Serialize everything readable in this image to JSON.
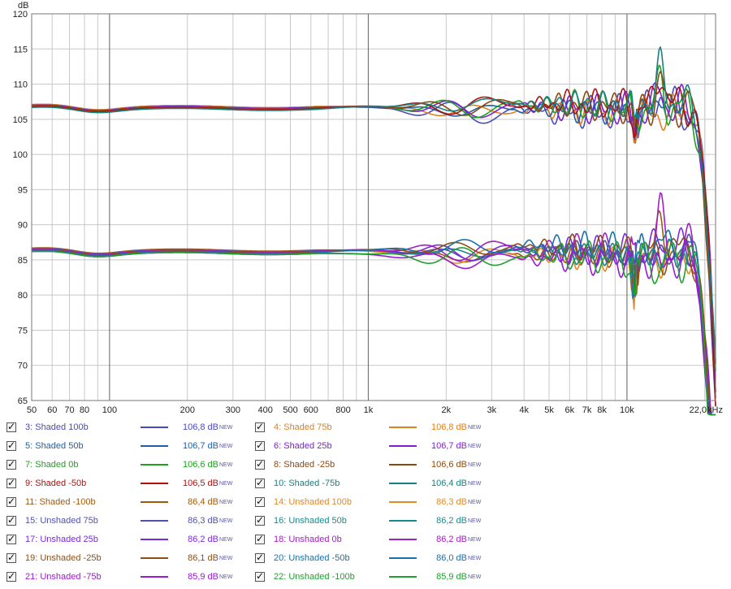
{
  "chart_data": {
    "type": "line",
    "ylabel": "dB",
    "xunit": "kHz",
    "ylim": [
      65,
      120
    ],
    "xlim": [
      50,
      22000
    ],
    "xscale": "log",
    "grid": true,
    "yticks": [
      65,
      70,
      75,
      80,
      85,
      90,
      95,
      100,
      105,
      110,
      115,
      120
    ],
    "xticks": [
      {
        "v": 50,
        "t": "50"
      },
      {
        "v": 60,
        "t": "60"
      },
      {
        "v": 70,
        "t": "70"
      },
      {
        "v": 80,
        "t": "80"
      },
      {
        "v": 100,
        "t": "100"
      },
      {
        "v": 200,
        "t": "200"
      },
      {
        "v": 300,
        "t": "300"
      },
      {
        "v": 400,
        "t": "400"
      },
      {
        "v": 500,
        "t": "500"
      },
      {
        "v": 600,
        "t": "600"
      },
      {
        "v": 800,
        "t": "800"
      },
      {
        "v": 1000,
        "t": "1k"
      },
      {
        "v": 2000,
        "t": "2k"
      },
      {
        "v": 3000,
        "t": "3k"
      },
      {
        "v": 4000,
        "t": "4k"
      },
      {
        "v": 5000,
        "t": "5k"
      },
      {
        "v": 6000,
        "t": "6k"
      },
      {
        "v": 7000,
        "t": "7k"
      },
      {
        "v": 8000,
        "t": "8k"
      },
      {
        "v": 10000,
        "t": "10k"
      },
      {
        "v": 22000,
        "t": "22,0"
      }
    ],
    "series": [
      {
        "name": "3: Shaded 100b",
        "color": "#4a4ac0",
        "level": 106.8,
        "group": 0
      },
      {
        "name": "4: Shaded 75b",
        "color": "#e08020",
        "level": 106.8,
        "group": 0
      },
      {
        "name": "5: Shaded 50b",
        "color": "#2060a8",
        "level": 106.7,
        "group": 0
      },
      {
        "name": "6: Shaded 25b",
        "color": "#8020d0",
        "level": 106.7,
        "group": 0
      },
      {
        "name": "7: Shaded 0b",
        "color": "#20a020",
        "level": 106.6,
        "group": 0
      },
      {
        "name": "8: Shaded -25b",
        "color": "#8a4a10",
        "level": 106.6,
        "group": 0
      },
      {
        "name": "9: Shaded -50b",
        "color": "#b01010",
        "level": 106.5,
        "group": 0
      },
      {
        "name": "10: Shaded -75b",
        "color": "#188080",
        "level": 106.4,
        "group": 0
      },
      {
        "name": "11: Shaded -100b",
        "color": "#a05a10",
        "level": 86.4,
        "group": 1
      },
      {
        "name": "14: Unshaded 100b",
        "color": "#e08a2a",
        "level": 86.3,
        "group": 1
      },
      {
        "name": "15: Unshaded 75b",
        "color": "#5050b0",
        "level": 86.3,
        "group": 1
      },
      {
        "name": "16: Unshaded 50b",
        "color": "#188a8a",
        "level": 86.2,
        "group": 1
      },
      {
        "name": "17: Unshaded 25b",
        "color": "#7a2ae0",
        "level": 86.2,
        "group": 1
      },
      {
        "name": "18: Unshaded 0b",
        "color": "#a020c0",
        "level": 86.2,
        "group": 1
      },
      {
        "name": "19: Unshaded -25b",
        "color": "#8a5018",
        "level": 86.1,
        "group": 1
      },
      {
        "name": "20: Unshaded -50b",
        "color": "#1a70a8",
        "level": 86.0,
        "group": 1
      },
      {
        "name": "21: Unshaded -75b",
        "color": "#9a1ad0",
        "level": 85.9,
        "group": 1
      },
      {
        "name": "22: Unshaded -100b",
        "color": "#20a030",
        "level": 85.9,
        "group": 1
      }
    ]
  },
  "legend": {
    "values": [
      "106,8 dB",
      "106,8 dB",
      "106,7 dB",
      "106,7 dB",
      "106,6 dB",
      "106,6 dB",
      "106,5 dB",
      "106,4 dB",
      "86,4 dB",
      "86,3 dB",
      "86,3 dB",
      "86,2 dB",
      "86,2 dB",
      "86,2 dB",
      "86,1 dB",
      "86,0 dB",
      "85,9 dB",
      "85,9 dB"
    ],
    "badge": "NEW"
  }
}
